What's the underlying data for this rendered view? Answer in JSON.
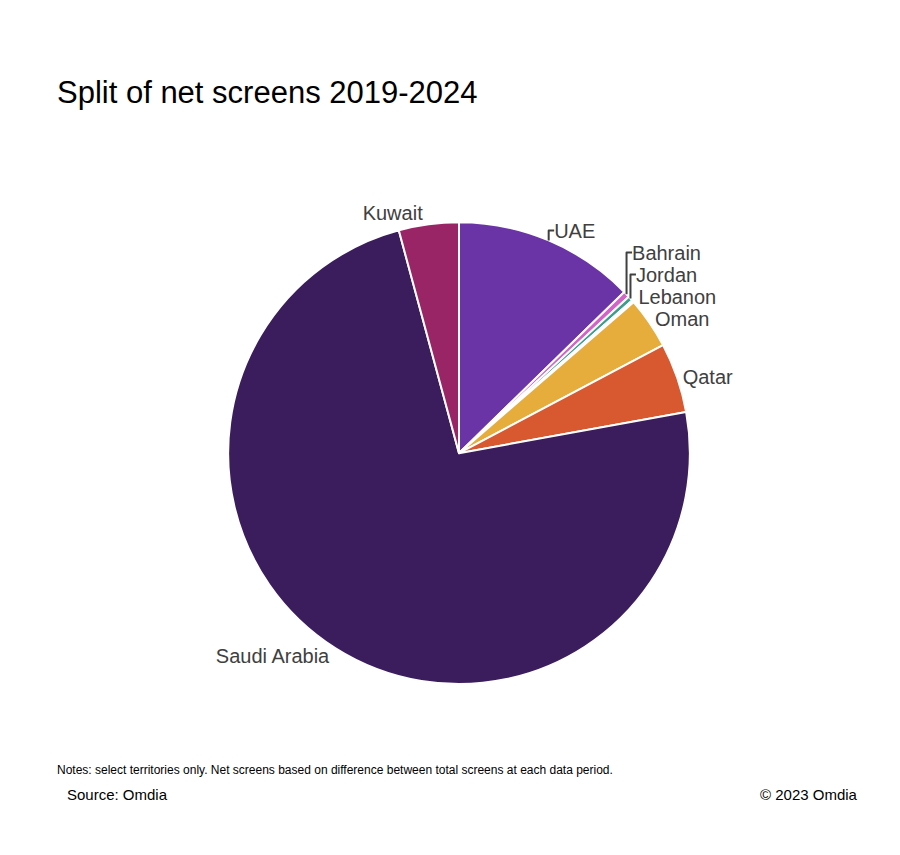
{
  "chart_data": {
    "type": "pie",
    "title": "Split of net screens 2019-2024",
    "categories": [
      "UAE",
      "Bahrain",
      "Jordan",
      "Lebanon",
      "Oman",
      "Qatar",
      "Saudi Arabia",
      "Kuwait"
    ],
    "values": [
      12.7,
      0.45,
      0.35,
      0.15,
      3.6,
      4.9,
      73.65,
      4.2
    ],
    "colors": [
      "#6a33a6",
      "#d462c8",
      "#3a9e8c",
      "#a9c9e6",
      "#e6ad3c",
      "#d8582f",
      "#3b1c5c",
      "#992566"
    ],
    "notes": "Notes: select territories only. Net screens based on difference between total screens at each data period.",
    "source": "Source: Omdia",
    "copyright": "© 2023 Omdia"
  }
}
